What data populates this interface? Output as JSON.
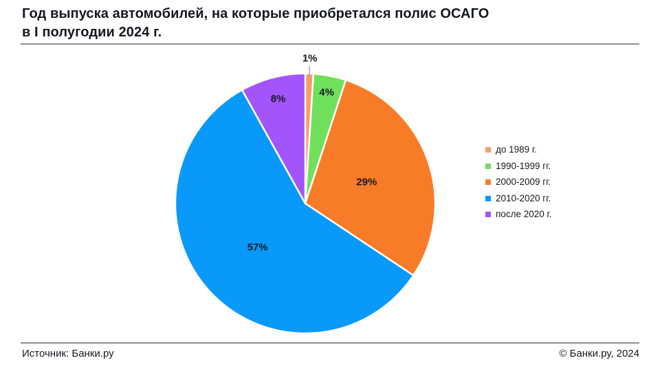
{
  "header": {
    "title_line1": "Год выпуска автомобилей, на которые приобретался полис ОСАГО",
    "title_line2": "в I полугодии 2024 г."
  },
  "footer": {
    "source": "Источник: Банки.ру",
    "copyright": "© Банки.ру, 2024"
  },
  "chart_data": {
    "type": "pie",
    "title": "Год выпуска автомобилей, на которые приобретался полис ОСАГО в I полугодии 2024 г.",
    "unit": "%",
    "start_angle_deg": 0,
    "direction": "clockwise",
    "legend_position": "right",
    "categories": [
      "до 1989 г.",
      "1990-1999 гг.",
      "2000-2009 гг.",
      "2010-2020 гг.",
      "после 2020 г."
    ],
    "values": [
      1,
      4,
      29,
      57,
      8
    ],
    "data_labels": [
      "1%",
      "4%",
      "29%",
      "57%",
      "8%"
    ],
    "slices": [
      {
        "label": "до 1989 г.",
        "value": 1,
        "display": "1%",
        "color": "#FA9E69"
      },
      {
        "label": "1990-1999 гг.",
        "value": 4,
        "display": "4%",
        "color": "#70E05C"
      },
      {
        "label": "2000-2009 гг.",
        "value": 29,
        "display": "29%",
        "color": "#F87C28"
      },
      {
        "label": "2010-2020 гг.",
        "value": 57,
        "display": "57%",
        "color": "#0999FA"
      },
      {
        "label": "после 2020 г.",
        "value": 8,
        "display": "8%",
        "color": "#A155FA"
      }
    ],
    "colors": {
      "slice_border": "#FFFFFF",
      "label_text": "#14181F",
      "leader_line": "#A6A6A6",
      "divider": "#8F8F8F"
    }
  }
}
